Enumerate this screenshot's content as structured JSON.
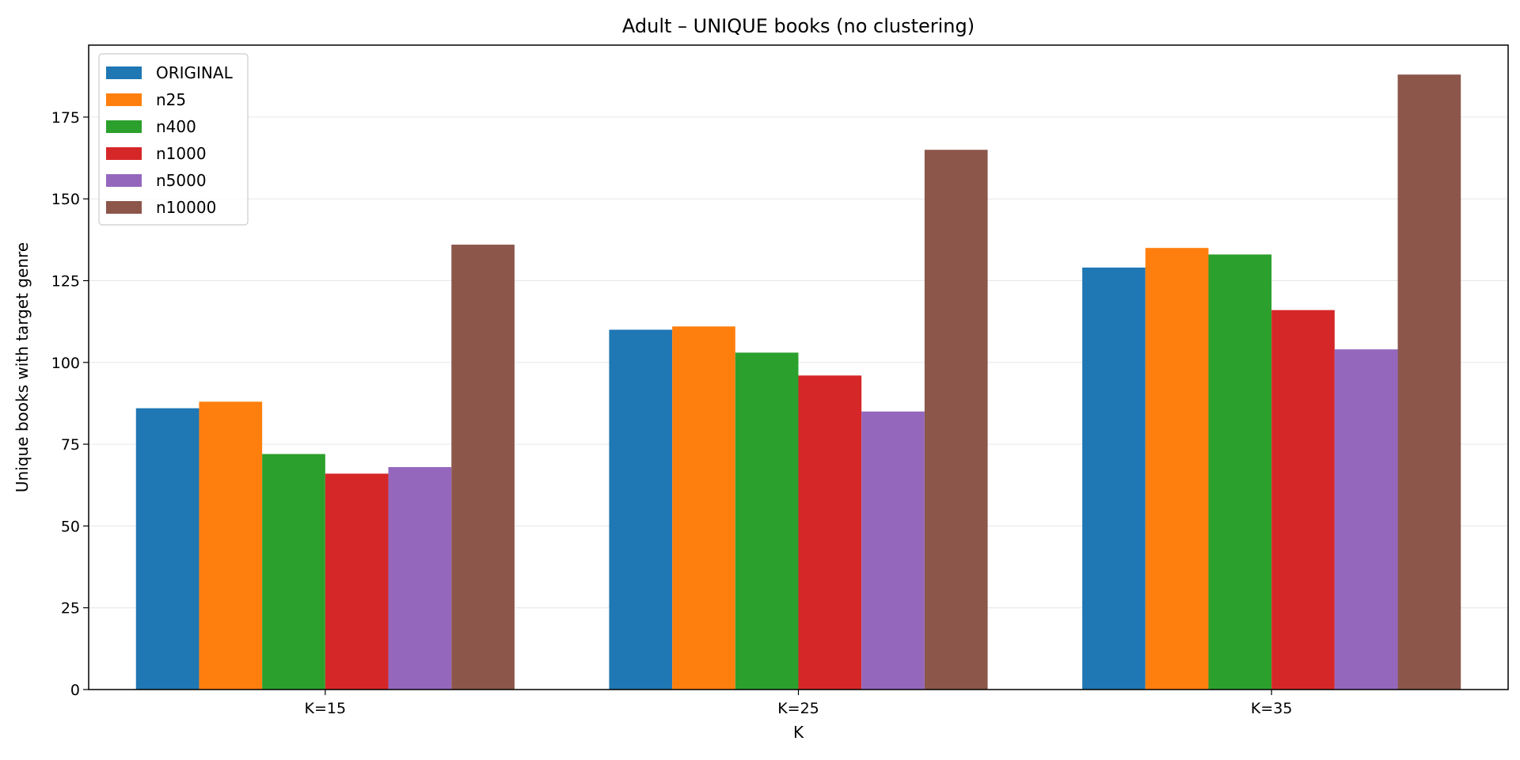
{
  "chart_data": {
    "type": "bar",
    "title": "Adult – UNIQUE books (no clustering)",
    "xlabel": "K",
    "ylabel": "Unique books with target genre",
    "categories": [
      "K=15",
      "K=25",
      "K=35"
    ],
    "ylim": [
      0,
      197
    ],
    "yticks": [
      0,
      25,
      50,
      75,
      100,
      125,
      150,
      175
    ],
    "grid": "y",
    "legend_position": "top-left",
    "series": [
      {
        "name": "ORIGINAL",
        "color": "#1f77b4",
        "values": [
          86,
          110,
          129
        ]
      },
      {
        "name": "n25",
        "color": "#ff7f0e",
        "values": [
          88,
          111,
          135
        ]
      },
      {
        "name": "n400",
        "color": "#2ca02c",
        "values": [
          72,
          103,
          133
        ]
      },
      {
        "name": "n1000",
        "color": "#d62728",
        "values": [
          66,
          96,
          116
        ]
      },
      {
        "name": "n5000",
        "color": "#9467bd",
        "values": [
          68,
          85,
          104
        ]
      },
      {
        "name": "n10000",
        "color": "#8c564b",
        "values": [
          136,
          165,
          188
        ]
      }
    ]
  }
}
